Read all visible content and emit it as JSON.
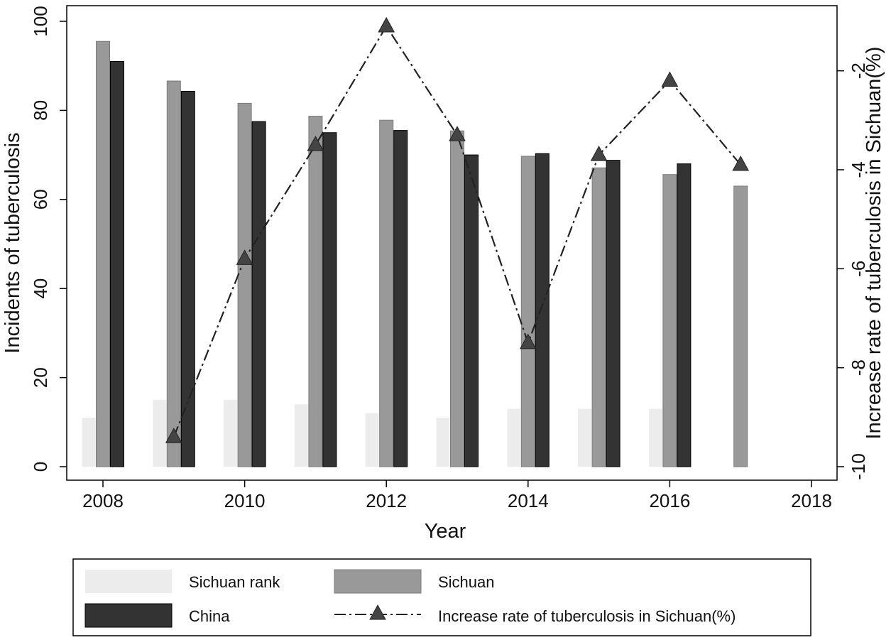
{
  "chart_data": {
    "type": "bar",
    "x": [
      2008,
      2009,
      2010,
      2011,
      2012,
      2013,
      2014,
      2015,
      2016,
      2017
    ],
    "xlabel": "Year",
    "ylabel": "Incidents of tuberculosis",
    "y2label": "Increase rate of tuberculosis in Sichuan(%)",
    "xlim": [
      2008,
      2018
    ],
    "ylim": [
      0,
      100
    ],
    "y2lim": [
      -10,
      -1
    ],
    "xticks": [
      "2008",
      "2010",
      "2012",
      "2014",
      "2016",
      "2018"
    ],
    "yticks": [
      "0",
      "20",
      "40",
      "60",
      "80",
      "100"
    ],
    "y2ticks": [
      "-10",
      "-8",
      "-6",
      "-4",
      "-2"
    ],
    "series": [
      {
        "name": "Sichuan rank",
        "type": "bar",
        "axis": "left",
        "color": "#ececec",
        "values": [
          11,
          15,
          15,
          14,
          12,
          11,
          13,
          13,
          13,
          null
        ]
      },
      {
        "name": "Sichuan",
        "type": "bar",
        "axis": "left",
        "color": "#999999",
        "values": [
          95.5,
          86.6,
          81.6,
          78.7,
          77.8,
          75.4,
          69.7,
          67.1,
          65.6,
          63
        ]
      },
      {
        "name": "China",
        "type": "bar",
        "axis": "left",
        "color": "#333333",
        "values": [
          91,
          84.3,
          77.5,
          75,
          75.5,
          70,
          70.3,
          68.8,
          68,
          null
        ]
      },
      {
        "name": "Increase rate of tuberculosis in Sichuan(%)",
        "type": "line",
        "axis": "right",
        "color": "#333333",
        "marker": "triangle",
        "linestyle": "dash-dot",
        "values": [
          null,
          -9.4,
          -5.8,
          -3.5,
          -1.1,
          -3.3,
          -7.5,
          -3.7,
          -2.2,
          -3.9
        ]
      }
    ],
    "legend": {
      "position": "bottom",
      "columns": 2
    },
    "grid": false
  }
}
